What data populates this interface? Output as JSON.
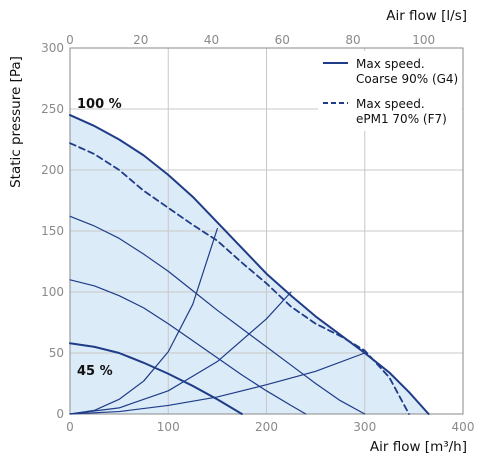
{
  "chart_data": {
    "type": "line",
    "xlabel": "Air flow [m³/h]",
    "x2label": "Air flow [l/s]",
    "ylabel": "Static pressure [Pa]",
    "xlim": [
      0,
      400
    ],
    "x2lim": [
      0,
      111.1
    ],
    "ylim": [
      0,
      300
    ],
    "x_ticks": [
      "0",
      "100",
      "200",
      "300",
      "400"
    ],
    "x2_ticks": [
      "0",
      "20",
      "40",
      "60",
      "80",
      "100"
    ],
    "y_ticks": [
      "0",
      "50",
      "100",
      "150",
      "200",
      "250",
      "300"
    ],
    "grid": true,
    "legend_position": "top-right",
    "colors": {
      "curve": "#1f3c88",
      "fill": "#dcebf8",
      "grid": "#c8c8c8",
      "axis": "#8a8a8a"
    },
    "series": [
      {
        "name": "Max speed. Coarse 90% (G4)",
        "style": "solid",
        "x": [
          0,
          25,
          50,
          75,
          100,
          125,
          150,
          175,
          200,
          225,
          250,
          275,
          300,
          325,
          345,
          365
        ],
        "y": [
          245,
          236,
          225,
          212,
          196,
          178,
          157,
          136,
          115,
          97,
          80,
          65,
          50,
          34,
          18,
          0
        ]
      },
      {
        "name": "Max speed. ePM1 70% (F7)",
        "style": "dashed",
        "x": [
          0,
          25,
          50,
          75,
          100,
          125,
          150,
          175,
          200,
          225,
          250,
          275,
          300,
          325,
          345
        ],
        "y": [
          222,
          213,
          200,
          183,
          169,
          155,
          142,
          124,
          107,
          88,
          74,
          64,
          52,
          30,
          0
        ]
      },
      {
        "x": [
          0,
          25,
          50,
          75,
          100,
          125,
          150,
          175
        ],
        "y": [
          58,
          55,
          50,
          42,
          33,
          23,
          12,
          0
        ]
      },
      {
        "x": [
          0,
          25,
          50,
          75,
          100,
          125,
          150,
          175,
          200,
          225,
          240
        ],
        "y": [
          110,
          105,
          97,
          87,
          74,
          60,
          46,
          32,
          19,
          7,
          0
        ]
      },
      {
        "x": [
          0,
          25,
          50,
          75,
          100,
          125,
          150,
          175,
          200,
          225,
          250,
          275,
          300
        ],
        "y": [
          162,
          154,
          144,
          131,
          117,
          101,
          85,
          70,
          55,
          40,
          25,
          11,
          0
        ]
      },
      {
        "x": [
          0,
          25,
          50,
          75,
          100,
          125,
          150
        ],
        "y": [
          0,
          3,
          12,
          27,
          51,
          90,
          152
        ]
      },
      {
        "x": [
          0,
          50,
          100,
          150,
          200,
          225
        ],
        "y": [
          0,
          5,
          19,
          43,
          78,
          100
        ]
      },
      {
        "x": [
          0,
          50,
          100,
          150,
          200,
          250,
          300
        ],
        "y": [
          0,
          2,
          7,
          14,
          24,
          35,
          50
        ]
      }
    ],
    "annotations": [
      "100 %",
      "45 %"
    ]
  }
}
